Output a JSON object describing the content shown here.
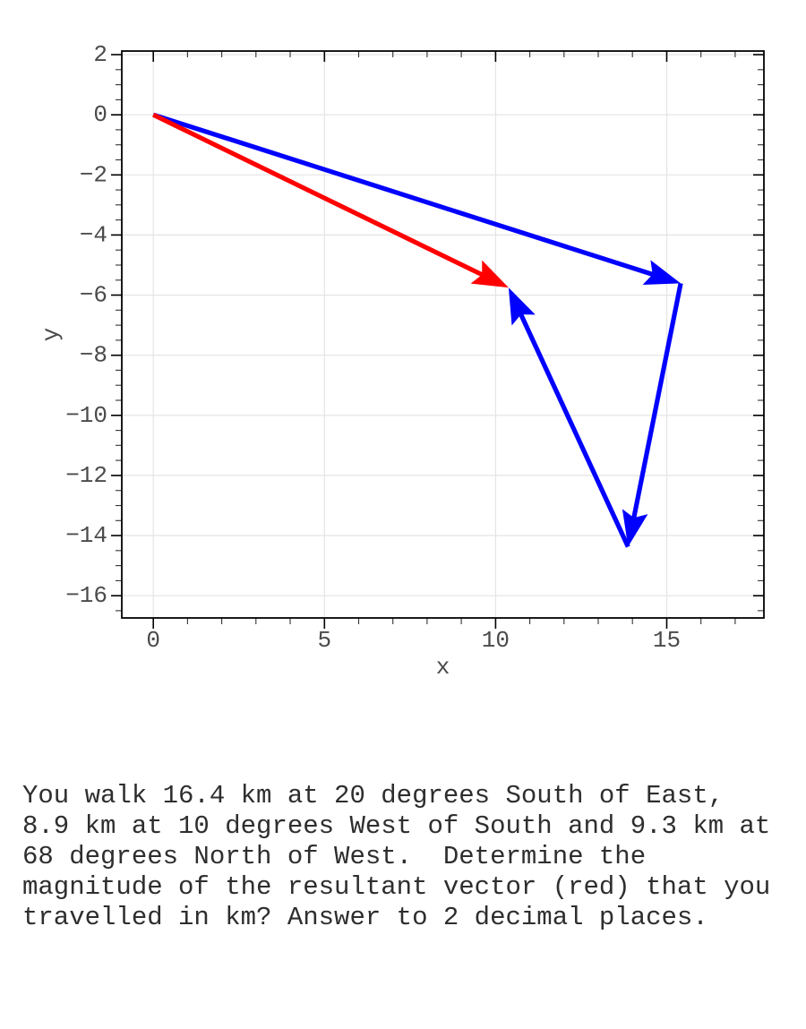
{
  "page": {
    "background": "#ffffff"
  },
  "chart_data": {
    "type": "vector",
    "title": "",
    "xlabel": "x",
    "ylabel": "y",
    "xlim": [
      -0.92,
      17.84
    ],
    "ylim": [
      -16.74,
      2.12
    ],
    "xticks": [
      0,
      5,
      10,
      15
    ],
    "xtick_labels": [
      "0",
      "5",
      "10",
      "15"
    ],
    "yticks": [
      2,
      0,
      -2,
      -4,
      -6,
      -8,
      -10,
      -12,
      -14,
      -16
    ],
    "ytick_labels": [
      "2",
      "0",
      "−2",
      "−4",
      "−6",
      "−8",
      "−10",
      "−12",
      "−14",
      "−16"
    ],
    "x_minor_step": 1,
    "y_minor_step": 0.5,
    "grid": "major-only",
    "grid_color": "#e4e4e4",
    "axis_color": "#000000",
    "tick_label_color": "#4b4b4b",
    "axis_label_color": "#4b4b4b",
    "legend": "none",
    "vectors": [
      {
        "name": "leg-1-blue",
        "from": [
          0,
          0
        ],
        "to": [
          15.41,
          -5.61
        ],
        "color": "#0000ff"
      },
      {
        "name": "leg-2-blue",
        "from": [
          15.41,
          -5.61
        ],
        "to": [
          13.87,
          -14.37
        ],
        "color": "#0000ff"
      },
      {
        "name": "leg-3-blue",
        "from": [
          13.87,
          -14.37
        ],
        "to": [
          10.38,
          -5.75
        ],
        "color": "#0000ff"
      },
      {
        "name": "resultant-red",
        "from": [
          0,
          0
        ],
        "to": [
          10.38,
          -5.75
        ],
        "color": "#ff0000"
      }
    ]
  },
  "problem": {
    "lines": [
      "You walk 16.4 km at 20 degrees South of East,",
      "8.9 km at 10 degrees West of South and 9.3 km at",
      "68 degrees North of West.  Determine the",
      "magnitude of the resultant vector (red) that you",
      "travelled in km? Answer to 2 decimal places."
    ]
  }
}
